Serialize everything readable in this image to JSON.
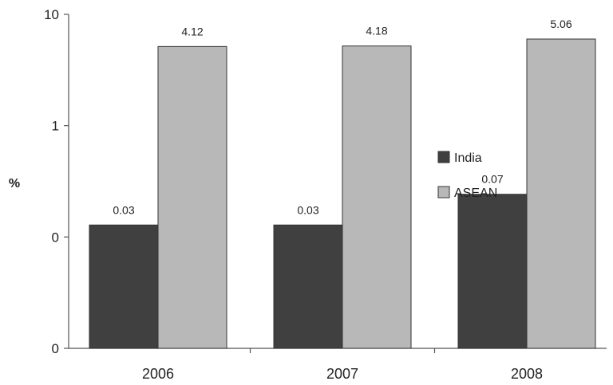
{
  "chart_data": {
    "type": "bar",
    "scale": "log",
    "ylabel": "%",
    "yticks": [
      "10",
      "1",
      "0",
      "0"
    ],
    "categories": [
      "2006",
      "2007",
      "2008"
    ],
    "series": [
      {
        "name": "India",
        "values": [
          0.03,
          0.03,
          0.07
        ],
        "labels": [
          "0.03",
          "0.03",
          "0.07"
        ],
        "color": "#404040"
      },
      {
        "name": "ASEAN",
        "values": [
          4.12,
          4.18,
          5.06
        ],
        "labels": [
          "4.12",
          "4.18",
          "5.06"
        ],
        "color": "#b8b8b8"
      }
    ],
    "legend_position": "right-middle",
    "grid": false
  }
}
